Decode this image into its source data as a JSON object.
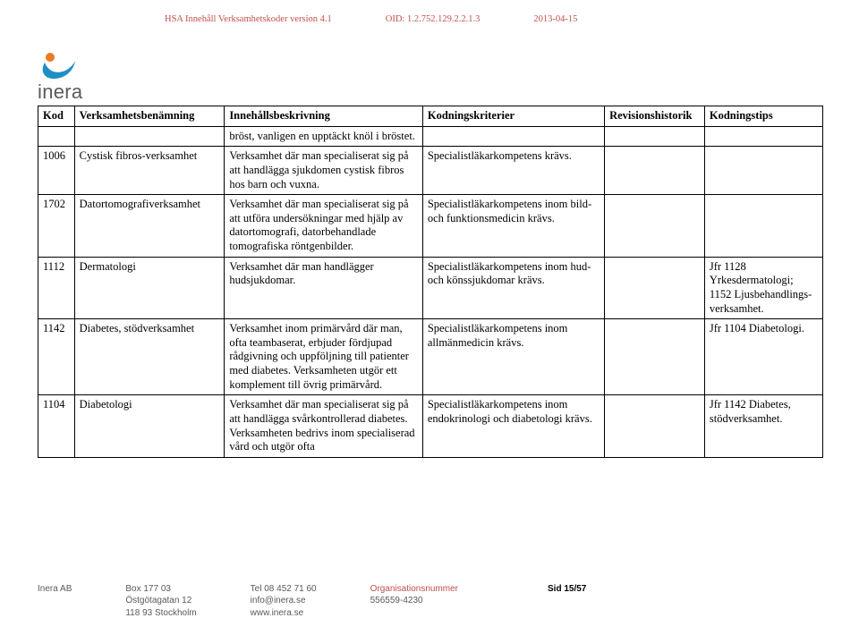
{
  "header": {
    "doc_title": "HSA Innehåll Verksamhetskoder version 4.1",
    "oid": "OID: 1.2.752.129.2.2.1.3",
    "date": "2013-04-15"
  },
  "logo": {
    "name": "inera",
    "orange": "#ec7a23",
    "blue": "#1f8fc6",
    "text_color": "#5b5b5b"
  },
  "table": {
    "columns": [
      "Kod",
      "Verksamhetsbenämning",
      "Innehållsbeskrivning",
      "Kodningskriterier",
      "Revisionshistorik",
      "Kodningstips"
    ],
    "rows": [
      {
        "kod": "",
        "ben": "",
        "inn": "bröst, vanligen en upptäckt knöl i bröstet.",
        "krit": "",
        "rev": "",
        "tips": ""
      },
      {
        "kod": "1006",
        "ben": "Cystisk fibros-verksamhet",
        "inn": "Verksamhet där man specialiserat sig på att handlägga sjukdomen cystisk fibros hos barn och vuxna.",
        "krit": "Specialistläkarkompetens krävs.",
        "rev": "",
        "tips": ""
      },
      {
        "kod": "1702",
        "ben": "Datortomografiverksamhet",
        "inn": "Verksamhet där man specialiserat sig på att utföra undersökningar med hjälp av datortomografi, datorbehandlade tomografiska röntgenbilder.",
        "krit": "Specialistläkarkompetens inom bild- och funktionsmedicin krävs.",
        "rev": "",
        "tips": ""
      },
      {
        "kod": "1112",
        "ben": "Dermatologi",
        "inn": "Verksamhet där man handlägger hudsjukdomar.",
        "krit": "Specialistläkarkompetens inom hud- och könssjukdomar krävs.",
        "rev": "",
        "tips": "Jfr 1128 Yrkesdermatologi; 1152 Ljusbehandlings-verksamhet."
      },
      {
        "kod": "1142",
        "ben": "Diabetes, stödverksamhet",
        "inn": "Verksamhet inom primärvård där man, ofta teambaserat, erbjuder fördjupad rådgivning och uppföljning till patienter med diabetes. Verksamheten utgör ett komplement till övrig primärvård.",
        "krit": "Specialistläkarkompetens inom allmänmedicin krävs.",
        "rev": "",
        "tips": "Jfr 1104 Diabetologi."
      },
      {
        "kod": "1104",
        "ben": "Diabetologi",
        "inn": "Verksamhet där man specialiserat sig på att handlägga svårkontrollerad diabetes. Verksamheten bedrivs inom specialiserad vård och utgör ofta",
        "krit": "Specialistläkarkompetens inom endokrinologi och diabetologi krävs.",
        "rev": "",
        "tips": "Jfr 1142 Diabetes, stödverksamhet."
      }
    ]
  },
  "footer": {
    "company": "Inera AB",
    "addr1": "Box 177 03",
    "addr2": "Östgötagatan 12",
    "addr3": "118 93 Stockholm",
    "tel": "Tel 08 452 71 60",
    "email": "info@inera.se",
    "web": "www.inera.se",
    "orgnum_label": "Organisationsnummer",
    "orgnum": "556559-4230",
    "page": "Sid 15/57"
  }
}
